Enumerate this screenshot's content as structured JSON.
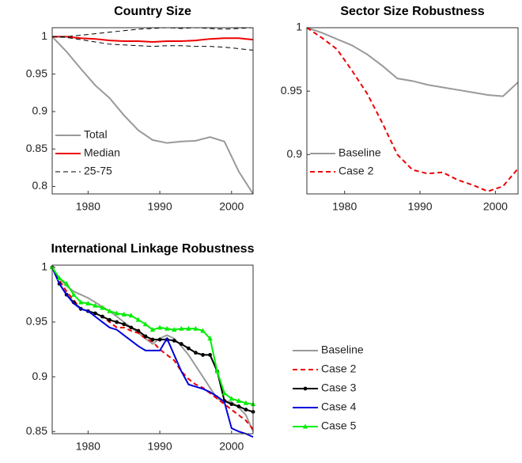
{
  "chart_data": [
    {
      "type": "line",
      "title": "Country Size",
      "x": [
        1975,
        1977,
        1979,
        1981,
        1983,
        1985,
        1987,
        1989,
        1991,
        1993,
        1995,
        1997,
        1999,
        2001,
        2003
      ],
      "xlim": [
        1975,
        2003
      ],
      "xticks": [
        1980,
        1990,
        2000
      ],
      "ylim": [
        0.79,
        1.012
      ],
      "yticks": [
        0.8,
        0.85,
        0.9,
        0.95,
        1
      ],
      "legend": "lower-left",
      "series": [
        {
          "name": "Total",
          "color": "#999999",
          "values": [
            1,
            0.98,
            0.957,
            0.935,
            0.918,
            0.895,
            0.875,
            0.862,
            0.858,
            0.86,
            0.861,
            0.866,
            0.86,
            0.82,
            0.79
          ]
        },
        {
          "name": "Median",
          "color": "#ee0000",
          "values": [
            1,
            1,
            0.998,
            0.997,
            0.995,
            0.994,
            0.994,
            0.993,
            0.994,
            0.994,
            0.995,
            0.997,
            0.998,
            0.998,
            0.996
          ]
        },
        {
          "name": "25-75",
          "color": "#000000",
          "dash": true,
          "width": 1,
          "values": [
            1,
            1,
            1.002,
            1.004,
            1.006,
            1.008,
            1.01,
            1.011,
            1.012,
            1.011,
            1.012,
            1.011,
            1.01,
            1.011,
            1.012
          ],
          "values_lower": [
            1,
            0.999,
            0.996,
            0.993,
            0.99,
            0.989,
            0.988,
            0.987,
            0.988,
            0.988,
            0.987,
            0.987,
            0.986,
            0.984,
            0.982
          ]
        }
      ]
    },
    {
      "type": "line",
      "title": "Sector Size Robustness",
      "x": [
        1975,
        1977,
        1979,
        1981,
        1983,
        1985,
        1987,
        1989,
        1991,
        1993,
        1995,
        1997,
        1999,
        2001,
        2003
      ],
      "xlim": [
        1975,
        2003
      ],
      "xticks": [
        1980,
        1990,
        2000
      ],
      "ylim": [
        0.869,
        1
      ],
      "yticks": [
        0.9,
        0.95,
        1
      ],
      "legend": "lower-left",
      "series": [
        {
          "name": "Baseline",
          "color": "#999999",
          "values": [
            1,
            0.996,
            0.991,
            0.986,
            0.979,
            0.97,
            0.96,
            0.958,
            0.955,
            0.953,
            0.951,
            0.949,
            0.947,
            0.946,
            0.957
          ]
        },
        {
          "name": "Case 2",
          "color": "#ee0000",
          "dash": true,
          "values": [
            1,
            0.992,
            0.983,
            0.966,
            0.948,
            0.925,
            0.9,
            0.888,
            0.885,
            0.886,
            0.88,
            0.876,
            0.871,
            0.875,
            0.889
          ]
        }
      ]
    },
    {
      "type": "line",
      "title": "International Linkage Robustness",
      "x": [
        1975,
        1976,
        1977,
        1978,
        1979,
        1980,
        1981,
        1982,
        1983,
        1984,
        1985,
        1986,
        1987,
        1988,
        1989,
        1990,
        1991,
        1992,
        1993,
        1994,
        1995,
        1996,
        1997,
        1998,
        1999,
        2000,
        2001,
        2002,
        2003
      ],
      "xlim": [
        1975,
        2003
      ],
      "xticks": [
        1980,
        1990,
        2000
      ],
      "ylim": [
        0.848,
        1.002
      ],
      "yticks": [
        0.85,
        0.9,
        0.95,
        1
      ],
      "legend": "outside-right",
      "series": [
        {
          "name": "Baseline",
          "color": "#999999",
          "values": [
            1,
            0.99,
            0.983,
            0.978,
            0.975,
            0.972,
            0.968,
            0.964,
            0.96,
            0.955,
            0.95,
            0.945,
            0.94,
            0.935,
            0.93,
            0.935,
            0.938,
            0.935,
            0.928,
            0.92,
            0.91,
            0.9,
            0.89,
            0.88,
            0.878,
            0.877,
            0.872,
            0.865,
            0.85
          ]
        },
        {
          "name": "Case 2",
          "color": "#ee0000",
          "dash": true,
          "values": [
            1,
            0.988,
            0.978,
            0.97,
            0.962,
            0.96,
            0.958,
            0.955,
            0.95,
            0.945,
            0.945,
            0.942,
            0.94,
            0.935,
            0.932,
            0.925,
            0.92,
            0.915,
            0.905,
            0.898,
            0.893,
            0.89,
            0.885,
            0.88,
            0.875,
            0.87,
            0.865,
            0.86,
            0.852
          ]
        },
        {
          "name": "Case 3",
          "color": "#000000",
          "marker": "circle",
          "values": [
            1,
            0.985,
            0.975,
            0.968,
            0.962,
            0.96,
            0.958,
            0.955,
            0.952,
            0.95,
            0.948,
            0.945,
            0.942,
            0.937,
            0.934,
            0.934,
            0.934,
            0.933,
            0.93,
            0.926,
            0.922,
            0.92,
            0.92,
            0.905,
            0.878,
            0.875,
            0.873,
            0.87,
            0.868
          ]
        },
        {
          "name": "Case 4",
          "color": "#0000dd",
          "values": [
            1,
            0.985,
            0.975,
            0.967,
            0.962,
            0.96,
            0.955,
            0.95,
            0.945,
            0.943,
            0.938,
            0.933,
            0.928,
            0.924,
            0.924,
            0.924,
            0.935,
            0.92,
            0.905,
            0.893,
            0.891,
            0.889,
            0.886,
            0.882,
            0.877,
            0.853,
            0.85,
            0.848,
            0.845
          ]
        },
        {
          "name": "Case 5",
          "color": "#00ee00",
          "marker": "triangle",
          "values": [
            1,
            0.99,
            0.985,
            0.975,
            0.968,
            0.967,
            0.965,
            0.963,
            0.96,
            0.958,
            0.957,
            0.956,
            0.952,
            0.948,
            0.943,
            0.945,
            0.944,
            0.943,
            0.944,
            0.944,
            0.944,
            0.942,
            0.935,
            0.905,
            0.885,
            0.88,
            0.878,
            0.876,
            0.875
          ]
        }
      ]
    }
  ]
}
